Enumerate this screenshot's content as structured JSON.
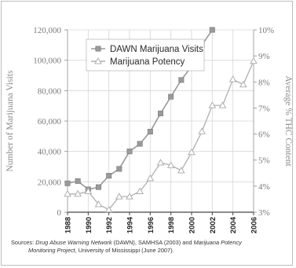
{
  "colors": {
    "dawn_series": "#9a9a9a",
    "potency_series": "#b0b0b0",
    "grid": "#d6d6d6",
    "axis": "#444444"
  },
  "chart_data": {
    "type": "line",
    "title": "",
    "x": [
      1988,
      1989,
      1990,
      1991,
      1992,
      1993,
      1994,
      1995,
      1996,
      1997,
      1998,
      1999,
      2000,
      2001,
      2002,
      2003,
      2004,
      2005,
      2006
    ],
    "xticks": [
      "1988",
      "1990",
      "1992",
      "1994",
      "1996",
      "1998",
      "2000",
      "2002",
      "2004",
      "2006"
    ],
    "xlim": [
      1988,
      2006
    ],
    "left_axis": {
      "label": "Number of Marijuana Visits",
      "ylim": [
        0,
        120000
      ],
      "ticks": [
        "0",
        "20,000",
        "40,000",
        "60,000",
        "80,000",
        "100,000",
        "120,000"
      ]
    },
    "right_axis": {
      "label": "Average % THC Content",
      "ylim": [
        3,
        10
      ],
      "ticks": [
        "3%",
        "4%",
        "5%",
        "6%",
        "7%",
        "8%",
        "9%",
        "10%"
      ]
    },
    "series": [
      {
        "name": "DAWN Marijuana Visits",
        "axis": "left",
        "marker": "square",
        "x": [
          1988,
          1989,
          1990,
          1991,
          1992,
          1993,
          1994,
          1995,
          1996,
          1997,
          1998,
          1999,
          2000,
          2001,
          2002
        ],
        "values": [
          19000,
          20500,
          15000,
          16500,
          24000,
          28500,
          40000,
          45000,
          53000,
          65000,
          76000,
          87000,
          96000,
          110000,
          120000
        ]
      },
      {
        "name": "Marijuana Potency",
        "axis": "right",
        "marker": "triangle",
        "x": [
          1988,
          1989,
          1990,
          1991,
          1992,
          1993,
          1994,
          1995,
          1996,
          1997,
          1998,
          1999,
          2000,
          2001,
          2002,
          2003,
          2004,
          2005,
          2006
        ],
        "values": [
          3.7,
          3.7,
          3.8,
          3.3,
          3.1,
          3.6,
          3.6,
          3.8,
          4.3,
          4.9,
          4.8,
          4.6,
          5.3,
          6.1,
          7.1,
          7.1,
          8.1,
          7.9,
          8.8
        ]
      }
    ],
    "legend": {
      "position": "top-left",
      "entries": [
        "DAWN Marijuana Visits",
        "Marijuana Potency"
      ]
    },
    "grid": true
  },
  "source": {
    "prefix": "Sources: ",
    "t1": "Drug Abuse Warning Network",
    "t2": " (DAWN), SAMHSA (2003) and ",
    "t3": "Marijuana Potency",
    "t4": "Monitoring Project",
    "t5": ", University of Mississippi (June 2007)."
  }
}
